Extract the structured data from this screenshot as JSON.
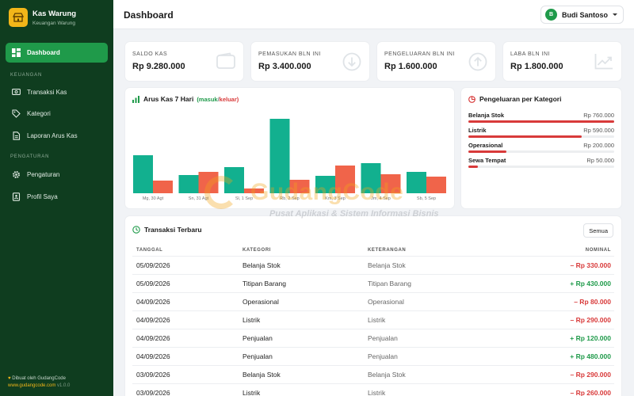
{
  "brand": {
    "title": "Kas Warung",
    "subtitle": "Keuangan Warung"
  },
  "sidebar": {
    "active": "Dashboard",
    "section1": "KEUANGAN",
    "section2": "PENGATURAN",
    "items": [
      "Transaksi Kas",
      "Kategori",
      "Laporan Arus Kas",
      "Pengaturan",
      "Profil Saya"
    ],
    "footer_made_by": "Dibuat oleh GudangCode",
    "footer_site": "www.gudangcode.com",
    "footer_version": "v1.0.0"
  },
  "header": {
    "title": "Dashboard",
    "user_initial": "B",
    "user_name": "Budi Santoso"
  },
  "stats": [
    {
      "label": "SALDO KAS",
      "value": "Rp 9.280.000",
      "icon": "wallet-icon"
    },
    {
      "label": "PEMASUKAN BLN INI",
      "value": "Rp 3.400.000",
      "icon": "arrow-down-circle-icon"
    },
    {
      "label": "PENGELUARAN BLN INI",
      "value": "Rp 1.600.000",
      "icon": "arrow-up-circle-icon"
    },
    {
      "label": "LABA BLN INI",
      "value": "Rp 1.800.000",
      "icon": "trend-up-icon"
    }
  ],
  "cashflow": {
    "title": "Arus Kas 7 Hari",
    "legend_open": "(masuk",
    "legend_sep": " / ",
    "legend_close": "keluar)"
  },
  "chart_data": {
    "type": "bar",
    "categories": [
      "Mg, 30 Agt",
      "Sn, 31 Agt",
      "Sl, 1 Sep",
      "Rb, 2 Sep",
      "Km, 3 Sep",
      "Jm, 4 Sep",
      "Sb, 5 Sep"
    ],
    "series": [
      {
        "name": "masuk",
        "values": [
          480000,
          230000,
          330000,
          940000,
          220000,
          380000,
          270000
        ]
      },
      {
        "name": "keluar",
        "values": [
          160000,
          270000,
          60000,
          170000,
          350000,
          240000,
          210000
        ]
      }
    ],
    "ylim": [
      0,
      1000000
    ],
    "colors": {
      "masuk": "#12b08f",
      "keluar": "#f0644a"
    }
  },
  "categories_panel": {
    "title": "Pengeluaran per Kategori",
    "items": [
      {
        "name": "Belanja Stok",
        "value": "Rp 760.000",
        "amount": 760000
      },
      {
        "name": "Listrik",
        "value": "Rp 590.000",
        "amount": 590000
      },
      {
        "name": "Operasional",
        "value": "Rp 200.000",
        "amount": 200000
      },
      {
        "name": "Sewa Tempat",
        "value": "Rp 50.000",
        "amount": 50000
      }
    ],
    "max": 760000
  },
  "transactions": {
    "title": "Transaksi Terbaru",
    "all_button": "Semua",
    "columns": [
      "TANGGAL",
      "KATEGORI",
      "KETERANGAN",
      "NOMINAL"
    ],
    "rows": [
      {
        "date": "05/09/2026",
        "category": "Belanja Stok",
        "desc": "Belanja Stok",
        "amount": "– Rp 330.000",
        "type": "out"
      },
      {
        "date": "05/09/2026",
        "category": "Titipan Barang",
        "desc": "Titipan Barang",
        "amount": "+ Rp 430.000",
        "type": "in"
      },
      {
        "date": "04/09/2026",
        "category": "Operasional",
        "desc": "Operasional",
        "amount": "– Rp 80.000",
        "type": "out"
      },
      {
        "date": "04/09/2026",
        "category": "Listrik",
        "desc": "Listrik",
        "amount": "– Rp 290.000",
        "type": "out"
      },
      {
        "date": "04/09/2026",
        "category": "Penjualan",
        "desc": "Penjualan",
        "amount": "+ Rp 120.000",
        "type": "in"
      },
      {
        "date": "04/09/2026",
        "category": "Penjualan",
        "desc": "Penjualan",
        "amount": "+ Rp 480.000",
        "type": "in"
      },
      {
        "date": "03/09/2026",
        "category": "Belanja Stok",
        "desc": "Belanja Stok",
        "amount": "– Rp 290.000",
        "type": "out"
      },
      {
        "date": "03/09/2026",
        "category": "Listrik",
        "desc": "Listrik",
        "amount": "– Rp 260.000",
        "type": "out"
      }
    ]
  },
  "watermark": {
    "title": "GudangCode",
    "subtitle": "Pusat Aplikasi & Sistem Informasi Bisnis"
  }
}
